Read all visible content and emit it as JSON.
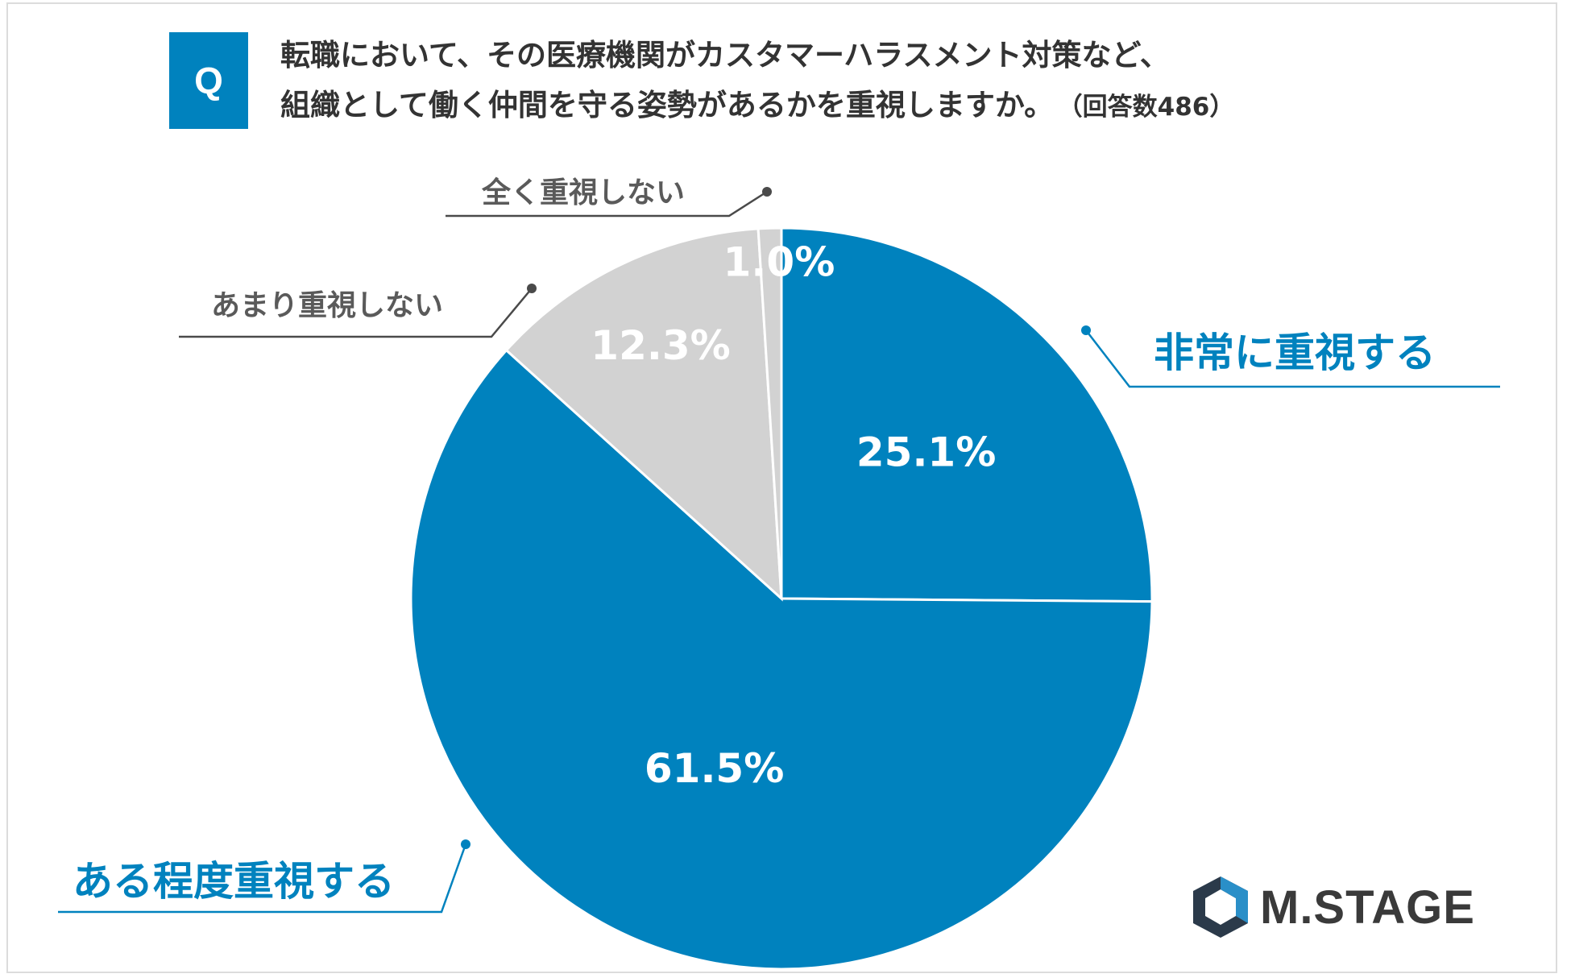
{
  "header": {
    "badge": "Q",
    "question_line1": "転職において、その医療機関がカスタマーハラスメント対策など、",
    "question_line2": "組織として働く仲間を守る姿勢があるかを重視しますか。",
    "respondents": "（回答数486）"
  },
  "chart_data": {
    "type": "pie",
    "start_angle_deg": 0,
    "direction": "clockwise",
    "slices": [
      {
        "label": "非常に重視する",
        "value": 25.1,
        "value_label": "25.1%",
        "color": "#0082be"
      },
      {
        "label": "ある程度重視する",
        "value": 61.5,
        "value_label": "61.5%",
        "color": "#0082be"
      },
      {
        "label": "あまり重視しない",
        "value": 12.3,
        "value_label": "12.3%",
        "color": "#d2d2d2"
      },
      {
        "label": "全く重視しない",
        "value": 1.0,
        "value_label": "1.0%",
        "color": "#d2d2d2"
      }
    ],
    "slice_border_color": "#ffffff"
  },
  "logo": {
    "text": "M.STAGE",
    "colors": {
      "dark": "#2b3a4a",
      "accent": "#2a8fc8"
    }
  }
}
